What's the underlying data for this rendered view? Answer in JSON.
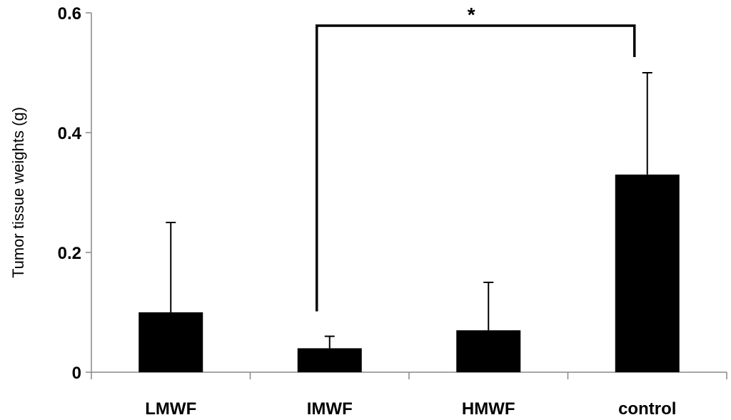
{
  "chart_data": {
    "type": "bar",
    "title": "",
    "xlabel": "",
    "ylabel": "Tumor tissue weights (g)",
    "ylim": [
      0,
      0.6
    ],
    "yticks": [
      "0",
      "0.2",
      "0.4",
      "0.6"
    ],
    "ytick_values": [
      0,
      0.2,
      0.4,
      0.6
    ],
    "categories": [
      "LMWF",
      "IMWF",
      "HMWF",
      "control"
    ],
    "values": [
      0.1,
      0.04,
      0.07,
      0.33
    ],
    "error_upper": [
      0.15,
      0.02,
      0.08,
      0.17
    ],
    "bar_color": "#000000",
    "grid": false,
    "legend": "none",
    "annotation": {
      "text": "*",
      "from_category": "IMWF",
      "to_category": "control"
    }
  }
}
